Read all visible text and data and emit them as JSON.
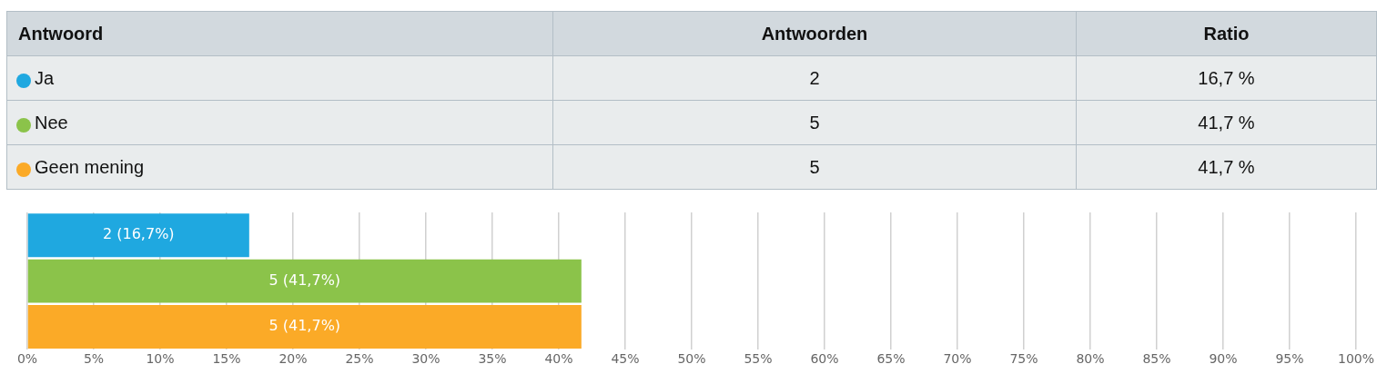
{
  "chart_data": {
    "type": "bar",
    "orientation": "horizontal",
    "categories": [
      null,
      null,
      null
    ],
    "values": [
      16.7,
      41.7,
      41.7
    ],
    "colors": [
      "#1fa8e0",
      "#8bc34a",
      "#fbaa27"
    ],
    "value_labels": [
      "2 (16,7%)",
      "5 (41,7%)",
      "5 (41,7%)"
    ],
    "annotations": [
      "Antwoord",
      "Antwoorden",
      "Ratio",
      "Ja",
      "2",
      "16,7 %",
      "Nee",
      "5",
      "41,7 %",
      "Geen mening",
      "5",
      "41,7 %"
    ],
    "xlim": [
      0,
      100
    ],
    "xticks": [
      {
        "value": 0,
        "label": "0%"
      },
      {
        "value": 5,
        "label": "5%"
      },
      {
        "value": 10,
        "label": "10%"
      },
      {
        "value": 15,
        "label": "15%"
      },
      {
        "value": 20,
        "label": "20%"
      },
      {
        "value": 25,
        "label": "25%"
      },
      {
        "value": 30,
        "label": "30%"
      },
      {
        "value": 35,
        "label": "35%"
      },
      {
        "value": 40,
        "label": "40%"
      },
      {
        "value": 45,
        "label": "45%"
      },
      {
        "value": 50,
        "label": "50%"
      },
      {
        "value": 55,
        "label": "55%"
      },
      {
        "value": 60,
        "label": "60%"
      },
      {
        "value": 65,
        "label": "65%"
      },
      {
        "value": 70,
        "label": "70%"
      },
      {
        "value": 75,
        "label": "75%"
      },
      {
        "value": 80,
        "label": "80%"
      },
      {
        "value": 85,
        "label": "85%"
      },
      {
        "value": 90,
        "label": "90%"
      },
      {
        "value": 95,
        "label": "95%"
      },
      {
        "value": 100,
        "label": "100%"
      }
    ],
    "grid": "x",
    "tick_labels": "x"
  }
}
